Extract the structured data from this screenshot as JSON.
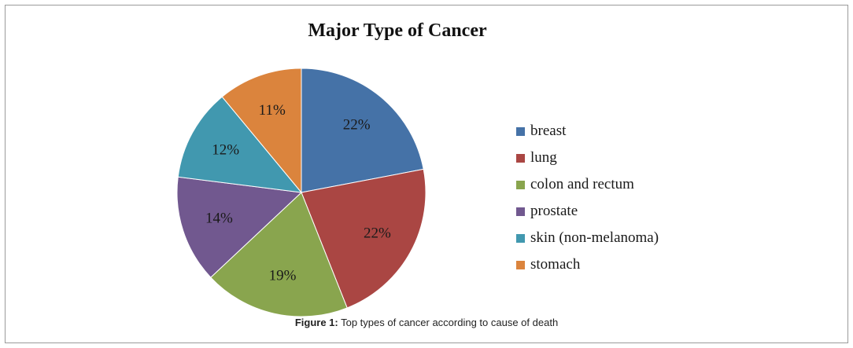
{
  "chart_data": {
    "type": "pie",
    "title": "Major Type of Cancer",
    "categories": [
      "breast",
      "lung",
      "colon and rectum",
      "prostate",
      "skin (non-melanoma)",
      "stomach"
    ],
    "values": [
      22,
      22,
      19,
      14,
      12,
      11
    ],
    "value_labels": [
      "22%",
      "22%",
      "19%",
      "14%",
      "12%",
      "11%"
    ],
    "colors": [
      "#4572A7",
      "#AA4643",
      "#89A54E",
      "#71588F",
      "#4198AF",
      "#DB843D"
    ],
    "legend_position": "right",
    "start_angle": "top, clockwise"
  },
  "caption": {
    "label": "Figure 1:",
    "text": " Top types of cancer according to cause of death"
  }
}
